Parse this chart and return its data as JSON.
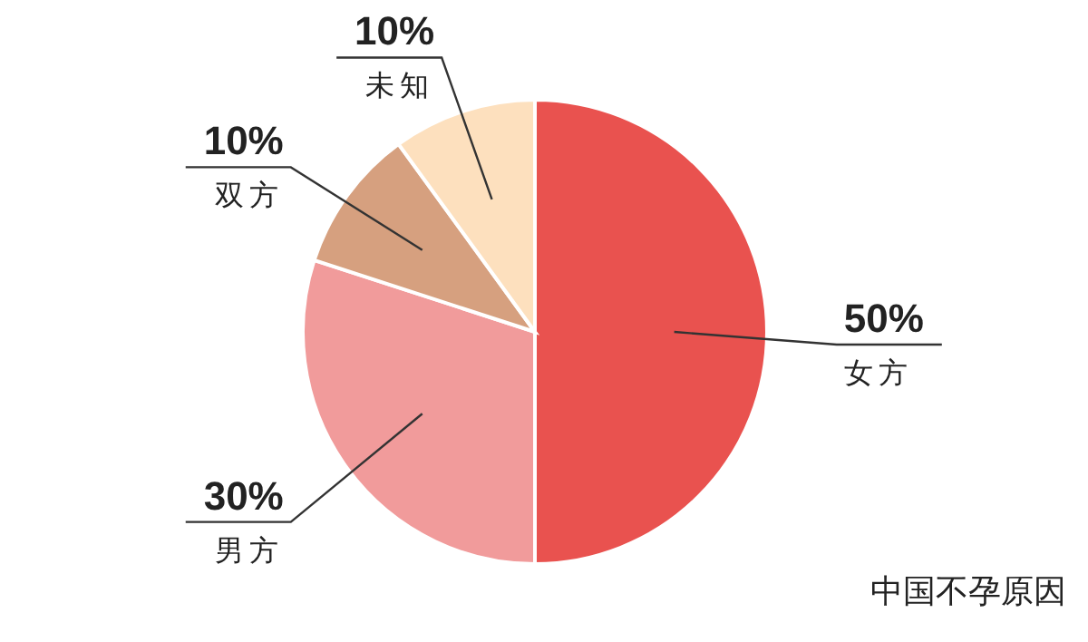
{
  "chart_data": {
    "type": "pie",
    "title": "中国不孕原因",
    "categories": [
      "女方",
      "男方",
      "双方",
      "未知"
    ],
    "values": [
      50,
      30,
      10,
      10
    ],
    "colors": [
      "#e9524f",
      "#f19b9b",
      "#d6a07f",
      "#fde0be"
    ],
    "value_labels": [
      "50%",
      "30%",
      "10%",
      "10%"
    ]
  }
}
